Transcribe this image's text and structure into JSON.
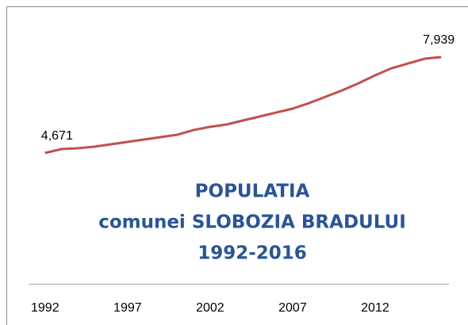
{
  "chart_data": {
    "type": "line",
    "title": [
      "POPULATIA",
      "comunei SLOBOZIA BRADULUI",
      "1992-2016"
    ],
    "x": [
      1992,
      1993,
      1994,
      1995,
      1996,
      1997,
      1998,
      1999,
      2000,
      2001,
      2002,
      2003,
      2004,
      2005,
      2006,
      2007,
      2008,
      2009,
      2010,
      2011,
      2012,
      2013,
      2014,
      2015,
      2016
    ],
    "values": [
      4671,
      4806,
      4833,
      4887,
      4968,
      5049,
      5130,
      5211,
      5292,
      5454,
      5562,
      5643,
      5778,
      5913,
      6048,
      6183,
      6372,
      6588,
      6804,
      7047,
      7317,
      7560,
      7722,
      7884,
      7939
    ],
    "value_labels": [
      "4,671",
      null,
      null,
      null,
      null,
      null,
      null,
      null,
      null,
      null,
      null,
      null,
      null,
      null,
      null,
      null,
      null,
      null,
      null,
      null,
      null,
      null,
      null,
      null,
      "7,939"
    ],
    "color": "#c0504d",
    "xlim": [
      1991,
      2017
    ],
    "xticks": [
      1992,
      1997,
      2002,
      2007,
      2012
    ]
  }
}
